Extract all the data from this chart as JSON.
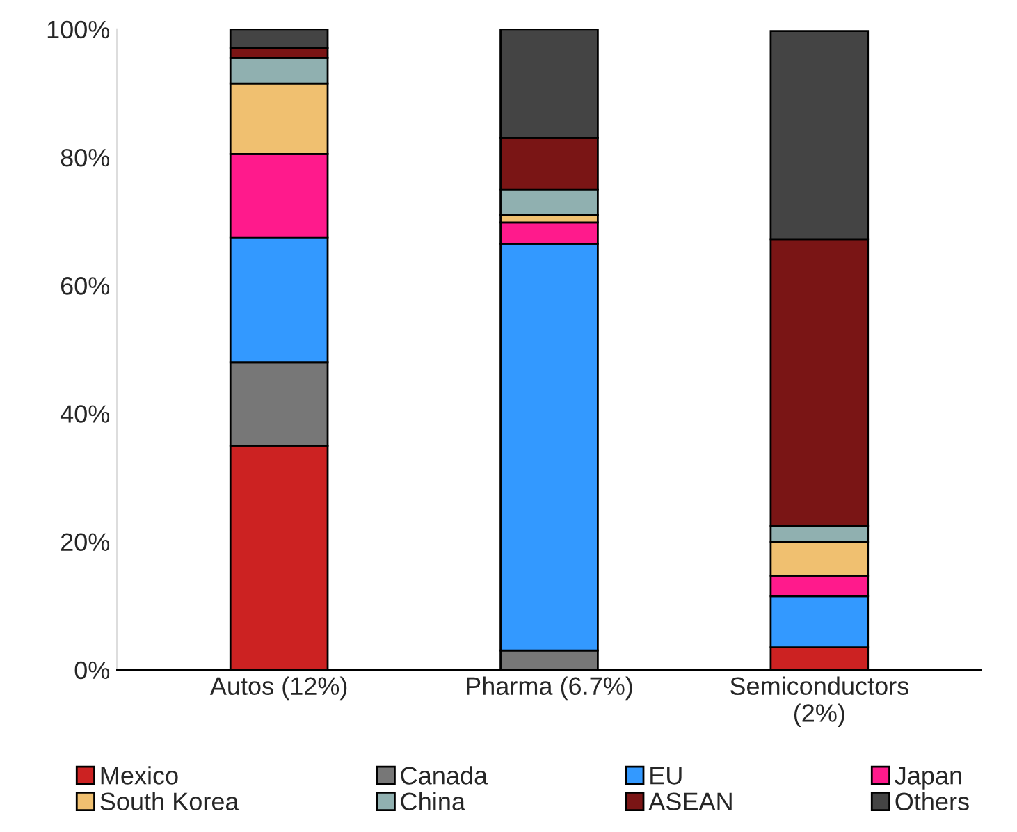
{
  "chart_data": {
    "type": "bar",
    "stacked": true,
    "categories": [
      "Autos (12%)",
      "Pharma (6.7%)",
      "Semiconductors\n(2%)"
    ],
    "series": [
      {
        "name": "Mexico",
        "color": "#cc2222",
        "values": [
          35,
          null,
          3.5
        ]
      },
      {
        "name": "Canada",
        "color": "#777777",
        "values": [
          13,
          3,
          null
        ]
      },
      {
        "name": "EU",
        "color": "#3399ff",
        "values": [
          19.5,
          63.5,
          8
        ]
      },
      {
        "name": "Japan",
        "color": "#ff1a8c",
        "values": [
          13,
          3.3,
          3.2
        ]
      },
      {
        "name": "South Korea",
        "color": "#f0c070",
        "values": [
          11,
          1.2,
          5.3
        ]
      },
      {
        "name": "China",
        "color": "#90b0b0",
        "values": [
          4,
          4,
          2.4
        ]
      },
      {
        "name": "ASEAN",
        "color": "#7a1515",
        "values": [
          1.5,
          8,
          44.8
        ]
      },
      {
        "name": "Others",
        "color": "#444444",
        "values": [
          3,
          17,
          32.5
        ]
      }
    ],
    "ylim": [
      0,
      100
    ],
    "yticks": [
      {
        "value": 0,
        "label": "0%"
      },
      {
        "value": 20,
        "label": "20%"
      },
      {
        "value": 40,
        "label": "40%"
      },
      {
        "value": 60,
        "label": "60%"
      },
      {
        "value": 80,
        "label": "80%"
      },
      {
        "value": 100,
        "label": "100%"
      }
    ],
    "grid": false,
    "legend": "bottom"
  }
}
